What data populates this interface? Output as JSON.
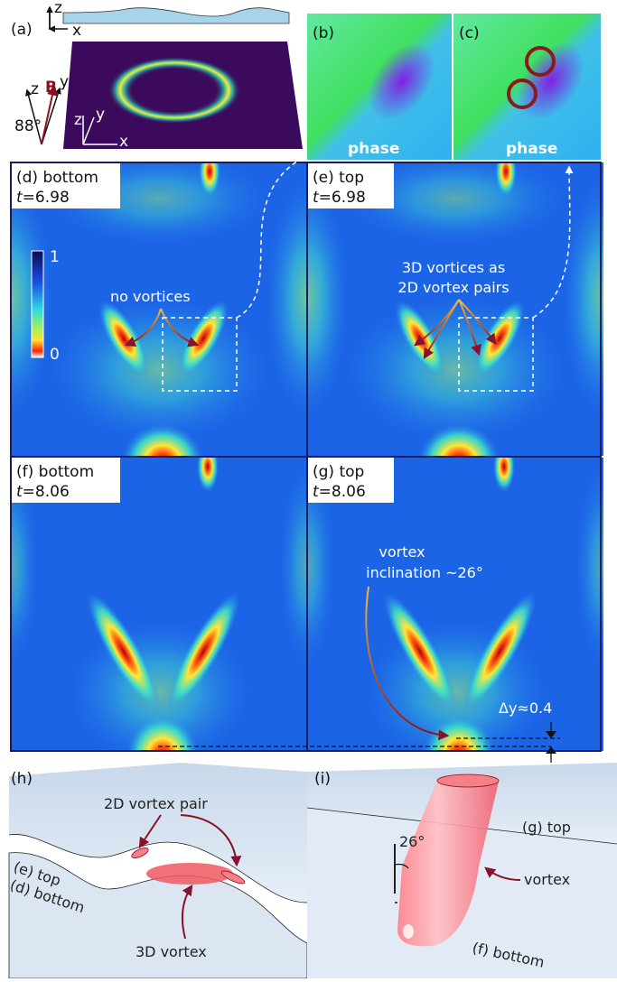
{
  "panels": {
    "a": {
      "label": "(a)",
      "strip_axes": {
        "z": "z",
        "x": "x"
      },
      "field": {
        "z": "z",
        "y": "y",
        "B": "B",
        "angle": "88°"
      },
      "sample_axes": {
        "z": "z",
        "y": "y",
        "x": "x"
      }
    },
    "b": {
      "label": "(b)",
      "caption": "phase"
    },
    "c": {
      "label": "(c)",
      "caption": "phase"
    },
    "d": {
      "label": "(d) bottom",
      "time_symbol": "t",
      "time_value": "=6.98",
      "colorbar": {
        "max": "1",
        "min": "0"
      },
      "annotation": "no vortices"
    },
    "e": {
      "label": "(e) top",
      "time_symbol": "t",
      "time_value": "=6.98",
      "annotation": [
        "3D vortices as",
        "2D vortex pairs"
      ]
    },
    "f": {
      "label": "(f) bottom",
      "time_symbol": "t",
      "time_value": "=8.06"
    },
    "g": {
      "label": "(g) top",
      "time_symbol": "t",
      "time_value": "=8.06",
      "annotation": [
        "vortex",
        "inclination ~26°"
      ],
      "shift": "Δy≈0.4"
    },
    "h": {
      "label": "(h)",
      "pair": "2D vortex pair",
      "top_layer": "(e) top",
      "bottom_layer": "(d) bottom",
      "vortex": "3D vortex"
    },
    "i": {
      "label": "(i)",
      "angle": "26°",
      "top_layer": "(g) top",
      "vortex": "vortex",
      "bottom_layer": "(f) bottom"
    }
  }
}
